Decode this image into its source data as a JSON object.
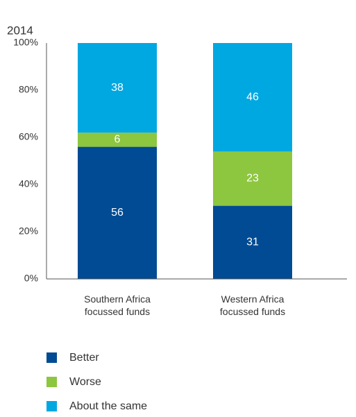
{
  "chart_data": {
    "type": "stacked_bar",
    "title": "2014",
    "categories": [
      "Southern Africa focussed funds",
      "Western Africa focussed funds"
    ],
    "series": [
      {
        "name": "Better",
        "color": "#004b93",
        "values": [
          56,
          31
        ]
      },
      {
        "name": "Worse",
        "color": "#8dc63f",
        "values": [
          6,
          23
        ]
      },
      {
        "name": "About the same",
        "color": "#00a8e1",
        "values": [
          38,
          46
        ]
      }
    ],
    "ylim": [
      0,
      100
    ],
    "yticks": [
      {
        "value": 0,
        "label": "0%"
      },
      {
        "value": 20,
        "label": "20%"
      },
      {
        "value": 40,
        "label": "40%"
      },
      {
        "value": 60,
        "label": "60%"
      },
      {
        "value": 80,
        "label": "80%"
      },
      {
        "value": 100,
        "label": "100%"
      }
    ]
  }
}
